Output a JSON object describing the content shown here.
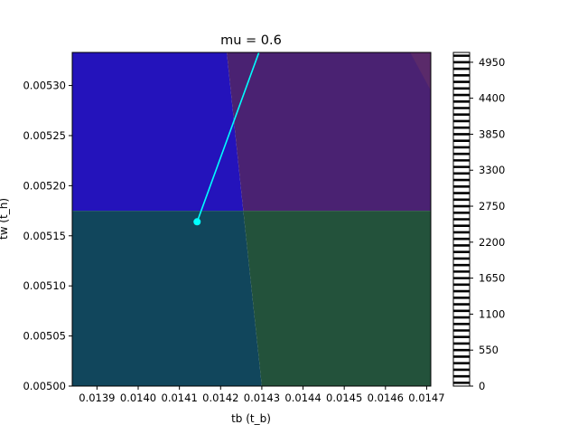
{
  "chart_data": {
    "type": "heatmap",
    "title": "mu = 0.6",
    "xlabel": "tb (t_b)",
    "ylabel": "tw (t_h)",
    "xlim": [
      0.01384,
      0.01471
    ],
    "ylim": [
      0.005,
      0.005333
    ],
    "xticks": [
      {
        "value": 0.0139,
        "label": "0.0139"
      },
      {
        "value": 0.014,
        "label": "0.0140"
      },
      {
        "value": 0.0141,
        "label": "0.0141"
      },
      {
        "value": 0.0142,
        "label": "0.0142"
      },
      {
        "value": 0.0143,
        "label": "0.0143"
      },
      {
        "value": 0.0144,
        "label": "0.0144"
      },
      {
        "value": 0.0145,
        "label": "0.0145"
      },
      {
        "value": 0.0146,
        "label": "0.0146"
      },
      {
        "value": 0.0147,
        "label": "0.0147"
      }
    ],
    "yticks": [
      {
        "value": 0.005,
        "label": "0.00500"
      },
      {
        "value": 0.00505,
        "label": "0.00505"
      },
      {
        "value": 0.0051,
        "label": "0.00510"
      },
      {
        "value": 0.00515,
        "label": "0.00515"
      },
      {
        "value": 0.0052,
        "label": "0.00520"
      },
      {
        "value": 0.00525,
        "label": "0.00525"
      },
      {
        "value": 0.0053,
        "label": "0.00530"
      }
    ],
    "regions": [
      {
        "color": "#2413bb",
        "polygon": [
          [
            0.01384,
            0.005333
          ],
          [
            0.014215,
            0.005333
          ],
          [
            0.014255,
            0.005175
          ],
          [
            0.01384,
            0.005175
          ]
        ]
      },
      {
        "color": "#4a2272",
        "polygon": [
          [
            0.014215,
            0.005333
          ],
          [
            0.01471,
            0.005333
          ],
          [
            0.01471,
            0.005175
          ],
          [
            0.014255,
            0.005175
          ]
        ]
      },
      {
        "color": "#5a2a6a",
        "polygon": [
          [
            0.01466,
            0.005333
          ],
          [
            0.01471,
            0.005333
          ],
          [
            0.01471,
            0.005295
          ]
        ]
      },
      {
        "color": "#11465c",
        "polygon": [
          [
            0.01384,
            0.005175
          ],
          [
            0.014255,
            0.005175
          ],
          [
            0.0143,
            0.005
          ],
          [
            0.01384,
            0.005
          ]
        ]
      },
      {
        "color": "#23523b",
        "polygon": [
          [
            0.014255,
            0.005175
          ],
          [
            0.01471,
            0.005175
          ],
          [
            0.01471,
            0.005
          ],
          [
            0.0143,
            0.005
          ]
        ]
      }
    ],
    "path": {
      "color": "#00ffff",
      "x": [
        0.014143,
        0.014293
      ],
      "y": [
        0.005164,
        0.005333
      ],
      "marker_index": 0
    },
    "colorbar": {
      "min": 0,
      "max": 5100,
      "ticks": [
        0,
        550,
        1100,
        1650,
        2200,
        2750,
        3300,
        3850,
        4400,
        4950
      ],
      "stripes": 51
    },
    "grid": false
  }
}
